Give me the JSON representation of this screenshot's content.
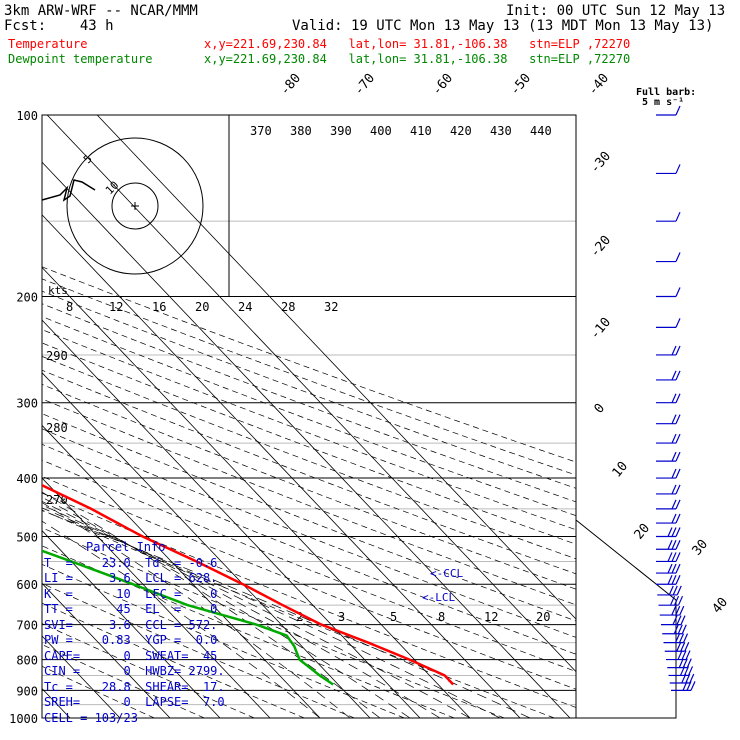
{
  "header": {
    "model": "3km ARW-WRF -- NCAR/MMM",
    "init": "Init: 00 UTC Sun 12 May 13",
    "fcst": "Fcst:    43 h",
    "valid": "Valid: 19 UTC Mon 13 May 13 (13 MDT Mon 13 May 13)",
    "temp_label": "Temperature",
    "dew_label": "Dewpoint temperature",
    "location": "x,y=221.69,230.84   lat,lon= 31.81,-106.38   stn=ELP ,72270"
  },
  "colors": {
    "temperature": "#ff0000",
    "dewpoint": "#00aa00",
    "wind": "#0000cc",
    "frame": "#000000"
  },
  "wind_legend": {
    "title": "Full barb:",
    "value": "5 m s⁻¹"
  },
  "hodograph": {
    "units": "kts",
    "ring_labels": [
      "5",
      "10"
    ]
  },
  "chart_data": {
    "type": "line",
    "title": "Skew-T log-P sounding",
    "pressure_levels": [
      100,
      200,
      300,
      400,
      500,
      600,
      700,
      800,
      900,
      1000
    ],
    "isotherm_labels": [
      -80,
      -70,
      -60,
      -50,
      -40,
      -30,
      -20,
      -10,
      0,
      10,
      20,
      30,
      40
    ],
    "potential_temp_labels": [
      370,
      380,
      390,
      400,
      410,
      420,
      430,
      440
    ],
    "inset_temp_labels": [
      8,
      12,
      16,
      20,
      24,
      28,
      32
    ],
    "side_theta_labels": [
      290,
      280,
      270
    ],
    "mixing_ratio_labels": [
      2,
      3,
      5,
      8,
      12,
      20
    ],
    "series": [
      {
        "name": "Temperature",
        "points": [
          [
            100,
            -66
          ],
          [
            130,
            -60
          ],
          [
            160,
            -56
          ],
          [
            200,
            -50
          ],
          [
            250,
            -44
          ],
          [
            300,
            -38
          ],
          [
            350,
            -30
          ],
          [
            400,
            -23
          ],
          [
            450,
            -16
          ],
          [
            500,
            -11
          ],
          [
            550,
            -5
          ],
          [
            600,
            0
          ],
          [
            650,
            4
          ],
          [
            700,
            8
          ],
          [
            750,
            14
          ],
          [
            800,
            19
          ],
          [
            850,
            23
          ],
          [
            880,
            23
          ]
        ]
      },
      {
        "name": "Dewpoint temperature",
        "points": [
          [
            100,
            -93
          ],
          [
            130,
            -92
          ],
          [
            160,
            -91
          ],
          [
            200,
            -89
          ],
          [
            250,
            -82
          ],
          [
            300,
            -70
          ],
          [
            350,
            -63
          ],
          [
            400,
            -55
          ],
          [
            450,
            -47
          ],
          [
            500,
            -39
          ],
          [
            550,
            -30
          ],
          [
            600,
            -22
          ],
          [
            650,
            -15
          ],
          [
            700,
            -5
          ],
          [
            730,
            -1
          ],
          [
            760,
            -1.5
          ],
          [
            800,
            -3
          ],
          [
            850,
            -2
          ],
          [
            880,
            -1
          ]
        ]
      }
    ],
    "annotations": [
      "CCL",
      "LCL"
    ]
  },
  "parcel_info": {
    "title": "Parcel Info",
    "rows": [
      "T  =    23.0  Td  = -0.6",
      "LI =     3.6  LCL = 628.",
      "K  =      10  LFC =    0",
      "TT =      45  EL  =    0",
      "SVI=     3.6  CCL = 572.",
      "PW =    0.83  YGP =  0.0",
      "CAPE=      0  SWEAT=  45",
      "CIN =      0  HWBZ= 2799.",
      "Tc =    28.8  SHEAR=  17.",
      "SREH=      0  LAPSE=  7.0",
      "CELL = 103/23"
    ]
  }
}
